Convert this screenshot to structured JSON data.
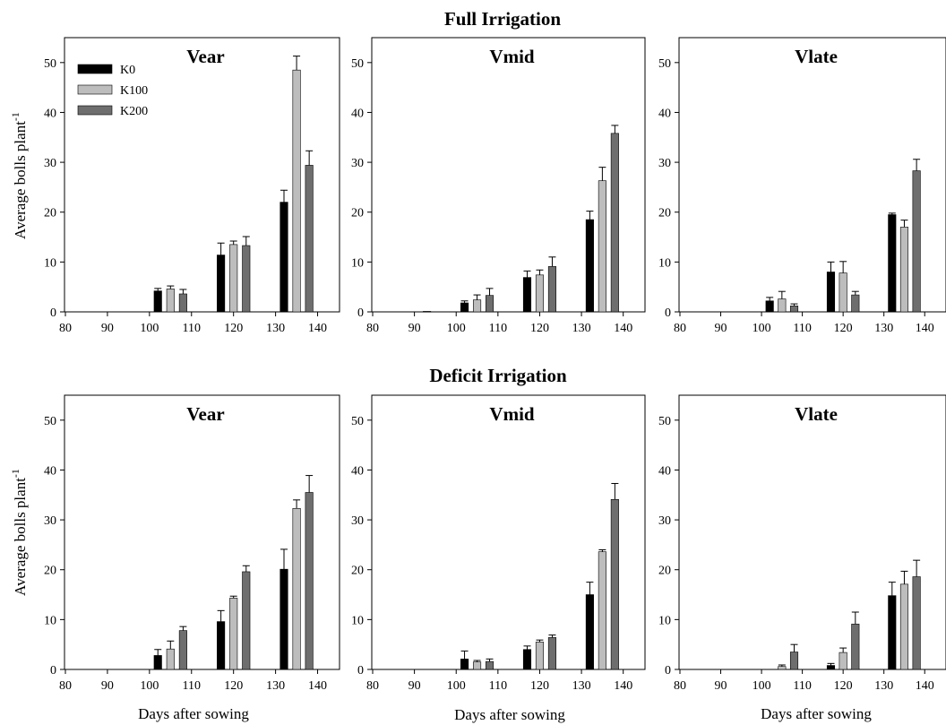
{
  "figure": {
    "ylabel_text": "Average bolls plant",
    "ylabel_sup": "-1",
    "xlabel": "Days after sowing",
    "sections": [
      {
        "title": "Full Irrigation"
      },
      {
        "title": "Deficit Irrigation"
      }
    ]
  },
  "colors": {
    "K0": "#000000",
    "K100": "#bdbdbd",
    "K200": "#6e6e6e"
  },
  "chart_data": [
    {
      "type": "bar",
      "section": "Full Irrigation",
      "title": "Vear",
      "x_ticks": [
        80,
        90,
        100,
        110,
        120,
        130,
        140
      ],
      "xlim": [
        80,
        145
      ],
      "y_ticks": [
        0,
        10,
        20,
        30,
        40,
        50
      ],
      "ylim": [
        0,
        55
      ],
      "legend": {
        "show": true,
        "placement": "top-left"
      },
      "series": [
        {
          "name": "K0",
          "x": [
            102,
            117,
            132
          ],
          "values": [
            4.2,
            11.4,
            22.0
          ],
          "errors": [
            0.5,
            2.4,
            2.4
          ]
        },
        {
          "name": "K100",
          "x": [
            105,
            120,
            135
          ],
          "values": [
            4.6,
            13.5,
            48.5
          ],
          "errors": [
            0.6,
            0.7,
            2.8
          ]
        },
        {
          "name": "K200",
          "x": [
            108,
            123,
            138
          ],
          "values": [
            3.6,
            13.3,
            29.4
          ],
          "errors": [
            0.9,
            1.8,
            2.9
          ]
        }
      ]
    },
    {
      "type": "bar",
      "section": "Full Irrigation",
      "title": "Vmid",
      "x_ticks": [
        80,
        90,
        100,
        110,
        120,
        130,
        140
      ],
      "xlim": [
        80,
        145
      ],
      "y_ticks": [
        0,
        10,
        20,
        30,
        40,
        50
      ],
      "ylim": [
        0,
        55
      ],
      "legend": {
        "show": false
      },
      "series": [
        {
          "name": "K0",
          "x": [
            93,
            102,
            117,
            132
          ],
          "values": [
            0.1,
            1.8,
            6.9,
            18.5
          ],
          "errors": [
            0,
            0.4,
            1.3,
            1.7
          ]
        },
        {
          "name": "K100",
          "x": [
            105,
            120,
            135
          ],
          "values": [
            2.4,
            7.4,
            26.3
          ],
          "errors": [
            1.0,
            1.0,
            2.7
          ]
        },
        {
          "name": "K200",
          "x": [
            108,
            123,
            138
          ],
          "values": [
            3.3,
            9.1,
            35.8
          ],
          "errors": [
            1.4,
            1.9,
            1.6
          ]
        }
      ]
    },
    {
      "type": "bar",
      "section": "Full Irrigation",
      "title": "Vlate",
      "x_ticks": [
        80,
        90,
        100,
        110,
        120,
        130,
        140
      ],
      "xlim": [
        80,
        145
      ],
      "y_ticks": [
        0,
        10,
        20,
        30,
        40,
        50
      ],
      "ylim": [
        0,
        55
      ],
      "legend": {
        "show": false
      },
      "series": [
        {
          "name": "K0",
          "x": [
            102,
            117,
            132
          ],
          "values": [
            2.2,
            8.0,
            19.5
          ],
          "errors": [
            0.7,
            2.0,
            0.3
          ]
        },
        {
          "name": "K100",
          "x": [
            105,
            120,
            135
          ],
          "values": [
            2.6,
            7.8,
            17.0
          ],
          "errors": [
            1.5,
            2.3,
            1.4
          ]
        },
        {
          "name": "K200",
          "x": [
            108,
            123,
            138
          ],
          "values": [
            1.2,
            3.4,
            28.3
          ],
          "errors": [
            0.4,
            0.7,
            2.3
          ]
        }
      ]
    },
    {
      "type": "bar",
      "section": "Deficit Irrigation",
      "title": "Vear",
      "x_ticks": [
        80,
        90,
        100,
        110,
        120,
        130,
        140
      ],
      "xlim": [
        80,
        145
      ],
      "y_ticks": [
        0,
        10,
        20,
        30,
        40,
        50
      ],
      "ylim": [
        0,
        55
      ],
      "legend": {
        "show": false
      },
      "series": [
        {
          "name": "K0",
          "x": [
            102,
            117,
            132
          ],
          "values": [
            2.8,
            9.6,
            20.1
          ],
          "errors": [
            1.2,
            2.2,
            4.0
          ]
        },
        {
          "name": "K100",
          "x": [
            105,
            120,
            135
          ],
          "values": [
            4.1,
            14.3,
            32.3
          ],
          "errors": [
            1.6,
            0.4,
            1.7
          ]
        },
        {
          "name": "K200",
          "x": [
            108,
            123,
            138
          ],
          "values": [
            7.8,
            19.6,
            35.5
          ],
          "errors": [
            0.8,
            1.2,
            3.4
          ]
        }
      ]
    },
    {
      "type": "bar",
      "section": "Deficit Irrigation",
      "title": "Vmid",
      "x_ticks": [
        80,
        90,
        100,
        110,
        120,
        130,
        140
      ],
      "xlim": [
        80,
        145
      ],
      "y_ticks": [
        0,
        10,
        20,
        30,
        40,
        50
      ],
      "ylim": [
        0,
        55
      ],
      "legend": {
        "show": false
      },
      "series": [
        {
          "name": "K0",
          "x": [
            102,
            117,
            132
          ],
          "values": [
            2.1,
            4.0,
            15.0
          ],
          "errors": [
            1.6,
            0.7,
            2.5
          ]
        },
        {
          "name": "K100",
          "x": [
            105,
            120,
            135
          ],
          "values": [
            1.5,
            5.5,
            23.6
          ],
          "errors": [
            0.3,
            0.4,
            0.4
          ]
        },
        {
          "name": "K200",
          "x": [
            108,
            123,
            138
          ],
          "values": [
            1.6,
            6.4,
            34.1
          ],
          "errors": [
            0.5,
            0.5,
            3.2
          ]
        }
      ]
    },
    {
      "type": "bar",
      "section": "Deficit Irrigation",
      "title": "Vlate",
      "x_ticks": [
        80,
        90,
        100,
        110,
        120,
        130,
        140
      ],
      "xlim": [
        80,
        145
      ],
      "y_ticks": [
        0,
        10,
        20,
        30,
        40,
        50
      ],
      "ylim": [
        0,
        55
      ],
      "legend": {
        "show": false
      },
      "series": [
        {
          "name": "K0",
          "x": [
            117,
            132
          ],
          "values": [
            0.8,
            14.8
          ],
          "errors": [
            0.4,
            2.7
          ]
        },
        {
          "name": "K100",
          "x": [
            105,
            120,
            135
          ],
          "values": [
            0.6,
            3.4,
            17.1
          ],
          "errors": [
            0.3,
            0.9,
            2.6
          ]
        },
        {
          "name": "K200",
          "x": [
            108,
            123,
            138
          ],
          "values": [
            3.5,
            9.1,
            18.6
          ],
          "errors": [
            1.5,
            2.4,
            3.3
          ]
        }
      ]
    }
  ]
}
